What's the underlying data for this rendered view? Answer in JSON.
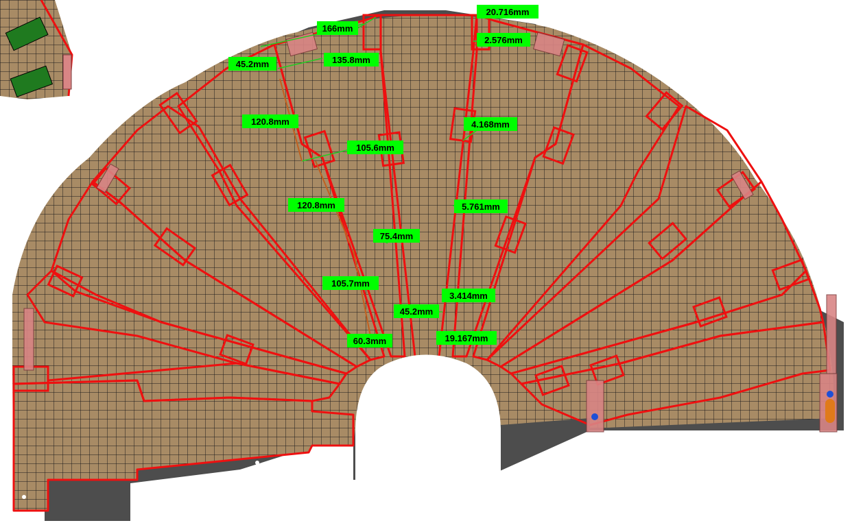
{
  "colors": {
    "background": "#ffffff",
    "tile_fill": "#a88b65",
    "grid_line": "#1a1a1a",
    "module_outline": "#ee1010",
    "base_plate": "#4d4d4d",
    "rail": "#d98585",
    "label_bg": "#00ff00",
    "dim_line": "#22cc22",
    "sensor_green": "#1f7a1f",
    "orange_part": "#e07a1a",
    "blue_part": "#1e4fd6"
  },
  "icons": [
    "mounting-hole-icon",
    "connector-icon",
    "sensor-module-icon"
  ],
  "dimensions": {
    "d1": "20.716mm",
    "d2": "166mm",
    "d3": "2.576mm",
    "d4": "45.2mm",
    "d5": "135.8mm",
    "d6": "120.8mm",
    "d7": "4.168mm",
    "d8": "105.6mm",
    "d9": "120.8mm",
    "d10": "5.761mm",
    "d11": "75.4mm",
    "d12": "105.7mm",
    "d13": "3.414mm",
    "d14": "45.2mm",
    "d15": "19.167mm",
    "d16": "60.3mm"
  }
}
